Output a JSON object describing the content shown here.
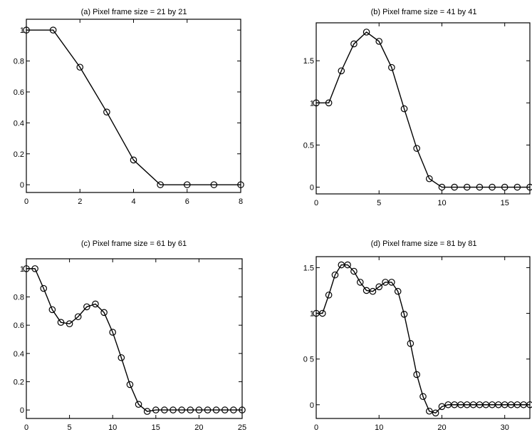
{
  "chart_data": [
    {
      "type": "line",
      "title": "(a) Pixel frame size = 21 by 21",
      "x": [
        0,
        1,
        2,
        3,
        4,
        5,
        6,
        7,
        8
      ],
      "series": [
        {
          "values": [
            1,
            1,
            0.76,
            0.47,
            0.16,
            0,
            0,
            0,
            0
          ]
        }
      ],
      "xlim": [
        0,
        8
      ],
      "ylim": [
        -0.05,
        1.07
      ],
      "xticks": [
        0,
        2,
        4,
        6,
        8
      ],
      "yticks": [
        0,
        0.2,
        0.4,
        0.6,
        0.8,
        1
      ],
      "ytick_labels": [
        "0",
        "0.2",
        "0.4",
        "0.6",
        "0.8",
        "1"
      ],
      "marker": "circle",
      "grid": false
    },
    {
      "type": "line",
      "title": "(b) Pixel frame size = 41 by 41",
      "x": [
        0,
        1,
        2,
        3,
        4,
        5,
        6,
        7,
        8,
        9,
        10,
        11,
        12,
        13,
        14,
        15,
        16,
        17
      ],
      "series": [
        {
          "values": [
            1,
            1,
            1.38,
            1.7,
            1.84,
            1.73,
            1.42,
            0.93,
            0.46,
            0.1,
            0,
            0,
            0,
            0,
            0,
            0,
            0,
            0
          ]
        }
      ],
      "xlim": [
        0,
        17
      ],
      "ylim": [
        -0.08,
        1.95
      ],
      "xticks": [
        0,
        5,
        10,
        15
      ],
      "yticks": [
        0,
        0.5,
        1,
        1.5
      ],
      "ytick_labels": [
        "0",
        "0.5",
        "1",
        "1.5"
      ],
      "marker": "circle",
      "grid": false
    },
    {
      "type": "line",
      "title": "(c) Pixel frame size = 61 by 61",
      "x": [
        0,
        1,
        2,
        3,
        4,
        5,
        6,
        7,
        8,
        9,
        10,
        11,
        12,
        13,
        14,
        15,
        16,
        17,
        18,
        19,
        20,
        21,
        22,
        23,
        24,
        25
      ],
      "series": [
        {
          "values": [
            1,
            1,
            0.86,
            0.71,
            0.62,
            0.61,
            0.66,
            0.73,
            0.75,
            0.69,
            0.55,
            0.37,
            0.18,
            0.04,
            -0.01,
            0,
            0,
            0,
            0,
            0,
            0,
            0,
            0,
            0,
            0,
            0
          ]
        }
      ],
      "xlim": [
        0,
        25
      ],
      "ylim": [
        -0.06,
        1.07
      ],
      "xticks": [
        0,
        5,
        10,
        15,
        20,
        25
      ],
      "yticks": [
        0,
        0.2,
        0.4,
        0.6,
        0.8,
        1
      ],
      "ytick_labels": [
        "0",
        "0.2",
        "0.4",
        "0.6",
        "0.8",
        "1"
      ],
      "marker": "circle",
      "grid": false
    },
    {
      "type": "line",
      "title": "(d) Pixel frame size = 81 by 81",
      "x": [
        0,
        1,
        2,
        3,
        4,
        5,
        6,
        7,
        8,
        9,
        10,
        11,
        12,
        13,
        14,
        15,
        16,
        17,
        18,
        19,
        20,
        21,
        22,
        23,
        24,
        25,
        26,
        27,
        28,
        29,
        30,
        31,
        32,
        33,
        34
      ],
      "series": [
        {
          "values": [
            1,
            1,
            1.2,
            1.42,
            1.53,
            1.53,
            1.46,
            1.34,
            1.25,
            1.24,
            1.29,
            1.34,
            1.34,
            1.24,
            0.99,
            0.67,
            0.33,
            0.09,
            -0.07,
            -0.09,
            -0.02,
            0,
            0,
            0,
            0,
            0,
            0,
            0,
            0,
            0,
            0,
            0,
            0,
            0,
            0
          ]
        }
      ],
      "xlim": [
        0,
        34
      ],
      "ylim": [
        -0.15,
        1.62
      ],
      "xticks": [
        0,
        10,
        20,
        30
      ],
      "yticks": [
        0,
        0.5,
        1,
        1.5
      ],
      "ytick_labels": [
        "0",
        "0 5",
        "1",
        "1.5"
      ],
      "marker": "circle",
      "grid": false
    }
  ]
}
